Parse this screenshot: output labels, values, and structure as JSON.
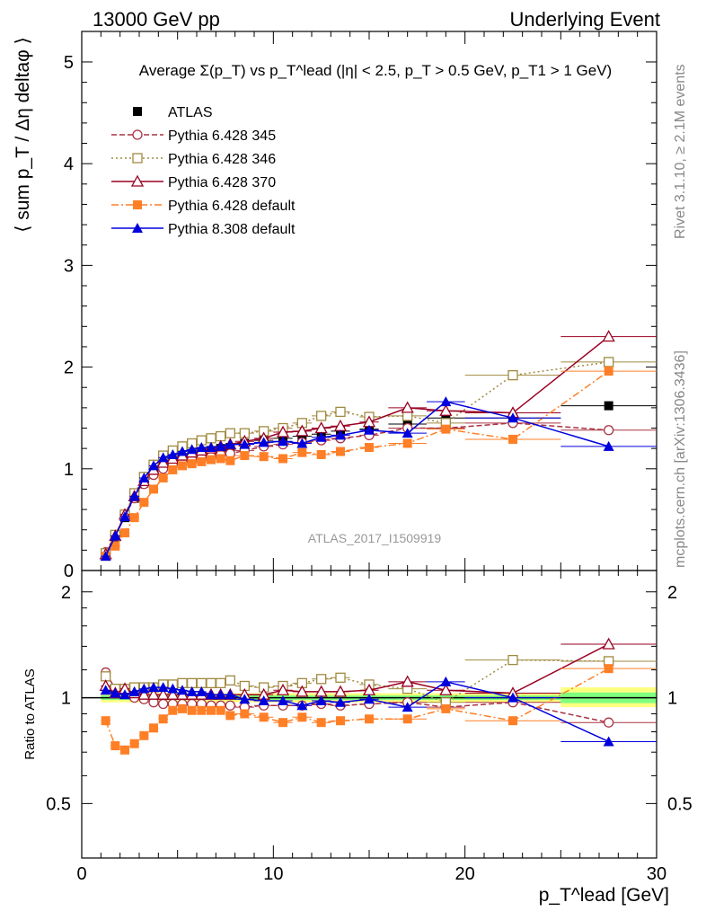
{
  "header": {
    "left": "13000 GeV pp",
    "right": "Underlying Event"
  },
  "side_labels": {
    "rivet": "Rivet 3.1.10, ≥ 2.1M events",
    "mcplots": "mcplots.cern.ch [arXiv:1306.3436]"
  },
  "chart_data": [
    {
      "type": "line",
      "panel": "main",
      "title": "Average Σ(p_T) vs p_T^lead (|η| < 2.5, p_T > 0.5 GeV, p_T1 > 1 GeV)",
      "ylabel": "⟨ sum p_T / Δη deltaφ ⟩",
      "watermark": "ATLAS_2017_I1509919",
      "xlim": [
        0,
        30
      ],
      "ylim": [
        0,
        5.3
      ],
      "yticks": [
        0,
        1,
        2,
        3,
        4,
        5
      ],
      "legend_position": "top-left",
      "x": [
        1.25,
        1.75,
        2.25,
        2.75,
        3.25,
        3.75,
        4.25,
        4.75,
        5.25,
        5.75,
        6.25,
        6.75,
        7.25,
        7.75,
        8.5,
        9.5,
        10.5,
        11.5,
        12.5,
        13.5,
        15.0,
        17.0,
        19.0,
        22.5,
        27.5
      ],
      "series": [
        {
          "name": "ATLAS",
          "color": "#000000",
          "marker": "square-filled",
          "line": "none",
          "values": [
            0.16,
            0.33,
            0.52,
            0.71,
            0.86,
            0.97,
            1.04,
            1.08,
            1.11,
            1.14,
            1.16,
            1.18,
            1.2,
            1.21,
            1.25,
            1.28,
            1.3,
            1.32,
            1.34,
            1.37,
            1.39,
            1.44,
            1.5,
            1.5,
            1.62
          ]
        },
        {
          "name": "Pythia 6.428 345",
          "color": "#aa3344",
          "marker": "circle-open",
          "line": "dashed",
          "values": [
            0.18,
            0.35,
            0.54,
            0.71,
            0.85,
            0.94,
            1.0,
            1.04,
            1.07,
            1.09,
            1.11,
            1.12,
            1.14,
            1.15,
            1.18,
            1.22,
            1.24,
            1.26,
            1.28,
            1.3,
            1.33,
            1.4,
            1.4,
            1.45,
            1.38
          ]
        },
        {
          "name": "Pythia 6.428 346",
          "color": "#a08a40",
          "marker": "square-open",
          "line": "dotted",
          "values": [
            0.17,
            0.35,
            0.55,
            0.76,
            0.92,
            1.04,
            1.13,
            1.18,
            1.22,
            1.25,
            1.28,
            1.3,
            1.32,
            1.35,
            1.35,
            1.37,
            1.4,
            1.45,
            1.52,
            1.56,
            1.51,
            1.52,
            1.45,
            1.92,
            2.05
          ]
        },
        {
          "name": "Pythia 6.428 370",
          "color": "#990022",
          "marker": "triangle-open",
          "line": "solid",
          "values": [
            0.16,
            0.34,
            0.55,
            0.73,
            0.88,
            0.99,
            1.06,
            1.1,
            1.13,
            1.16,
            1.18,
            1.2,
            1.22,
            1.24,
            1.27,
            1.3,
            1.36,
            1.37,
            1.4,
            1.42,
            1.46,
            1.6,
            1.57,
            1.55,
            2.3
          ]
        },
        {
          "name": "Pythia 6.428 default",
          "color": "#ff7f27",
          "marker": "square-filled",
          "line": "dashdot",
          "values": [
            0.14,
            0.24,
            0.37,
            0.52,
            0.67,
            0.8,
            0.91,
            0.99,
            1.03,
            1.05,
            1.07,
            1.09,
            1.1,
            1.08,
            1.13,
            1.12,
            1.1,
            1.16,
            1.14,
            1.17,
            1.21,
            1.25,
            1.39,
            1.29,
            1.96
          ]
        },
        {
          "name": "Pythia 8.308 default",
          "color": "#0000dd",
          "marker": "triangle-filled",
          "line": "solid",
          "values": [
            0.14,
            0.34,
            0.53,
            0.73,
            0.91,
            1.03,
            1.11,
            1.14,
            1.17,
            1.19,
            1.21,
            1.21,
            1.22,
            1.24,
            1.24,
            1.26,
            1.27,
            1.25,
            1.31,
            1.33,
            1.38,
            1.35,
            1.66,
            1.5,
            1.22
          ]
        }
      ]
    },
    {
      "type": "line",
      "panel": "ratio",
      "ylabel": "Ratio to ATLAS",
      "xlabel": "p_T^lead [GeV]",
      "xlim": [
        0,
        30
      ],
      "xticks": [
        0,
        10,
        20,
        30
      ],
      "ylim": [
        0.35,
        2.3
      ],
      "yticks": [
        0.5,
        1,
        2
      ],
      "band_color_inner": "#7fff7f",
      "band_color_outer": "#ffff7f",
      "x": [
        1.25,
        1.75,
        2.25,
        2.75,
        3.25,
        3.75,
        4.25,
        4.75,
        5.25,
        5.75,
        6.25,
        6.75,
        7.25,
        7.75,
        8.5,
        9.5,
        10.5,
        11.5,
        12.5,
        13.5,
        15.0,
        17.0,
        19.0,
        22.5,
        27.5
      ],
      "series": [
        {
          "name": "Pythia 6.428 345",
          "color": "#aa3344",
          "marker": "circle-open",
          "line": "dashed",
          "values": [
            1.18,
            1.06,
            1.04,
            1.0,
            0.99,
            0.97,
            0.96,
            0.96,
            0.96,
            0.96,
            0.96,
            0.95,
            0.95,
            0.95,
            0.94,
            0.95,
            0.95,
            0.95,
            0.96,
            0.95,
            0.96,
            0.97,
            0.94,
            0.97,
            0.85
          ]
        },
        {
          "name": "Pythia 6.428 346",
          "color": "#a08a40",
          "marker": "square-open",
          "line": "dotted",
          "values": [
            1.15,
            1.06,
            1.06,
            1.07,
            1.07,
            1.07,
            1.09,
            1.09,
            1.1,
            1.1,
            1.1,
            1.1,
            1.1,
            1.12,
            1.08,
            1.07,
            1.08,
            1.1,
            1.13,
            1.14,
            1.09,
            1.06,
            0.97,
            1.28,
            1.27
          ]
        },
        {
          "name": "Pythia 6.428 370",
          "color": "#990022",
          "marker": "triangle-open",
          "line": "solid",
          "values": [
            1.08,
            1.03,
            1.06,
            1.03,
            1.02,
            1.02,
            1.02,
            1.02,
            1.02,
            1.02,
            1.02,
            1.02,
            1.02,
            1.02,
            1.02,
            1.02,
            1.05,
            1.04,
            1.04,
            1.04,
            1.05,
            1.11,
            1.05,
            1.03,
            1.42
          ]
        },
        {
          "name": "Pythia 6.428 default",
          "color": "#ff7f27",
          "marker": "square-filled",
          "line": "dashdot",
          "values": [
            0.86,
            0.73,
            0.71,
            0.74,
            0.78,
            0.82,
            0.87,
            0.92,
            0.93,
            0.92,
            0.92,
            0.92,
            0.92,
            0.89,
            0.9,
            0.88,
            0.85,
            0.88,
            0.85,
            0.86,
            0.87,
            0.87,
            0.93,
            0.86,
            1.21
          ]
        },
        {
          "name": "Pythia 8.308 default",
          "color": "#0000dd",
          "marker": "triangle-filled",
          "line": "solid",
          "values": [
            1.05,
            1.03,
            1.02,
            1.04,
            1.06,
            1.07,
            1.07,
            1.06,
            1.05,
            1.04,
            1.04,
            1.02,
            1.02,
            1.02,
            0.99,
            0.98,
            0.98,
            0.95,
            0.98,
            0.97,
            0.99,
            0.94,
            1.11,
            1.0,
            0.75
          ]
        }
      ]
    }
  ]
}
